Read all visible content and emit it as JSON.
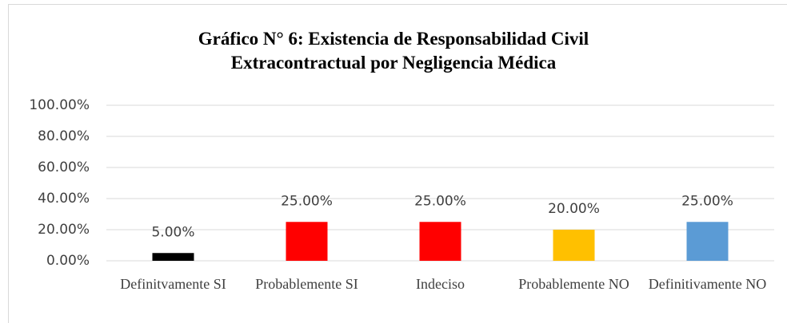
{
  "chart_data": {
    "type": "bar",
    "title": "Gráfico N° 6: Existencia de Responsabilidad Civil Extracontractual por Negligencia Médica",
    "categories": [
      "Definitvamente SI",
      "Probablemente SI",
      "Indeciso",
      "Probablemente NO",
      "Definitivamente NO"
    ],
    "values": [
      5,
      25,
      25,
      20,
      25
    ],
    "value_labels": [
      "5.00%",
      "25.00%",
      "25.00%",
      "20.00%",
      "25.00%"
    ],
    "colors": [
      "#000000",
      "#ff0000",
      "#ff0000",
      "#ffc000",
      "#5b9bd5"
    ],
    "ylim": [
      0,
      100
    ],
    "yticks": [
      {
        "value": 0,
        "label": "0.00%"
      },
      {
        "value": 20,
        "label": "20.00%"
      },
      {
        "value": 40,
        "label": "40.00%"
      },
      {
        "value": 60,
        "label": "60.00%"
      },
      {
        "value": 80,
        "label": "80.00%"
      },
      {
        "value": 100,
        "label": "100.00%"
      }
    ],
    "grid": true
  }
}
